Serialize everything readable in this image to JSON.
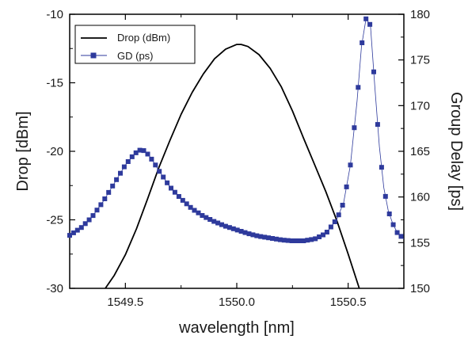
{
  "chart_data": {
    "type": "line",
    "xlabel": "wavelength [nm]",
    "ylabel": "Drop [dBm]",
    "y2label": "Group Delay [ps]",
    "xlim": [
      1549.25,
      1550.75
    ],
    "ylim": [
      -30,
      -10
    ],
    "y2lim": [
      150,
      180
    ],
    "x_ticks": [
      1549.5,
      1550.0,
      1550.5
    ],
    "x_tick_labels": [
      "1549.5",
      "1550.0",
      "1550.5"
    ],
    "y_ticks": [
      -30,
      -25,
      -20,
      -15,
      -10
    ],
    "y_tick_labels": [
      "-30",
      "-25",
      "-20",
      "-15",
      "-10"
    ],
    "y2_ticks": [
      150,
      155,
      160,
      165,
      170,
      175,
      180
    ],
    "y2_tick_labels": [
      "150",
      "155",
      "160",
      "165",
      "170",
      "175",
      "180"
    ],
    "legend_position": "top-left",
    "grid": false,
    "series": [
      {
        "name": "Drop (dBm)",
        "axis": "left",
        "style": "line",
        "color": "#000000",
        "x": [
          1549.41,
          1549.45,
          1549.5,
          1549.55,
          1549.6,
          1549.65,
          1549.7,
          1549.75,
          1549.8,
          1549.85,
          1549.9,
          1549.95,
          1550.0,
          1550.02,
          1550.05,
          1550.1,
          1550.15,
          1550.2,
          1550.25,
          1550.3,
          1550.35,
          1550.4,
          1550.45,
          1550.5,
          1550.55
        ],
        "values": [
          -30.0,
          -29.05,
          -27.55,
          -25.65,
          -23.45,
          -21.2,
          -19.2,
          -17.3,
          -15.7,
          -14.35,
          -13.25,
          -12.55,
          -12.2,
          -12.2,
          -12.35,
          -12.95,
          -13.95,
          -15.3,
          -17.05,
          -19.05,
          -21.0,
          -22.95,
          -25.1,
          -27.5,
          -30.0
        ]
      },
      {
        "name": "GD (ps)",
        "axis": "right",
        "style": "markers-line",
        "color": "#2e3a9c",
        "x": [
          1549.25,
          1549.3,
          1549.35,
          1549.4,
          1549.45,
          1549.5,
          1549.53,
          1549.55,
          1549.57,
          1549.59,
          1549.61,
          1549.63,
          1549.65,
          1549.7,
          1549.75,
          1549.8,
          1549.85,
          1549.9,
          1549.95,
          1550.0,
          1550.05,
          1550.1,
          1550.15,
          1550.2,
          1550.25,
          1550.3,
          1550.35,
          1550.4,
          1550.45,
          1550.48,
          1550.51,
          1550.54,
          1550.56,
          1550.58,
          1550.6,
          1550.62,
          1550.64,
          1550.66,
          1550.68,
          1550.7,
          1550.72,
          1550.75
        ],
        "values": [
          155.8,
          156.6,
          157.8,
          159.5,
          161.5,
          163.5,
          164.4,
          164.9,
          165.2,
          165.0,
          164.4,
          163.7,
          162.9,
          161.1,
          159.8,
          158.7,
          157.9,
          157.3,
          156.8,
          156.4,
          156.0,
          155.7,
          155.5,
          155.3,
          155.2,
          155.2,
          155.4,
          156.0,
          157.6,
          159.4,
          163.5,
          170.5,
          176.5,
          179.5,
          178.8,
          172.0,
          165.5,
          161.0,
          158.5,
          157.1,
          156.1,
          155.4
        ]
      }
    ]
  }
}
